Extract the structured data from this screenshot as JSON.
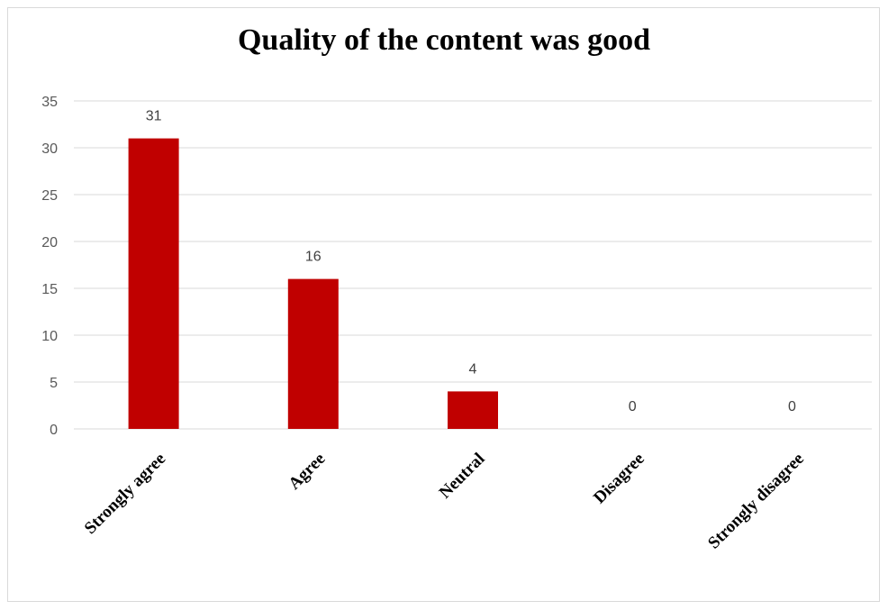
{
  "chart_data": {
    "type": "bar",
    "title": "Quality of the content was good",
    "categories": [
      "Strongly agree",
      "Agree",
      "Neutral",
      "Disagree",
      "Strongly disagree"
    ],
    "values": [
      31,
      16,
      4,
      0,
      0
    ],
    "ylim": [
      0,
      35
    ],
    "yticks": [
      0,
      5,
      10,
      15,
      20,
      25,
      30,
      35
    ],
    "grid": true,
    "legend": "none",
    "bar_color": "#C00000"
  }
}
